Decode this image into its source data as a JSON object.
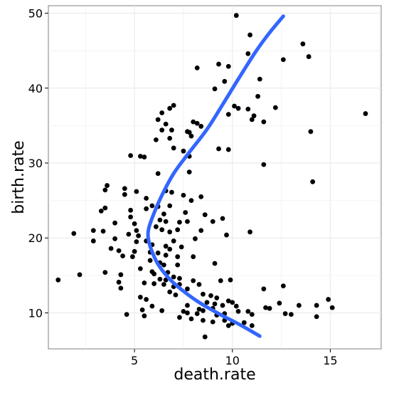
{
  "chart_data": {
    "type": "scatter",
    "title": "",
    "xlabel": "death.rate",
    "ylabel": "birth.rate",
    "xlim": [
      0.6,
      17.6
    ],
    "ylim": [
      5.2,
      51.0
    ],
    "x_ticks": [
      5,
      10,
      15
    ],
    "y_ticks": [
      10,
      20,
      30,
      40,
      50
    ],
    "x_tick_labels": [
      "5",
      "10",
      "15"
    ],
    "y_tick_labels": [
      "10",
      "20",
      "30",
      "40",
      "50"
    ],
    "grid": true,
    "background": "#ffffff",
    "grid_color": "#ebebeb",
    "point_color": "#000000",
    "smooth_color": "#3366ff",
    "points": [
      [
        10.2,
        49.7
      ],
      [
        10.9,
        47.1
      ],
      [
        13.6,
        45.9
      ],
      [
        10.8,
        44.6
      ],
      [
        13.9,
        44.2
      ],
      [
        9.3,
        43.2
      ],
      [
        9.8,
        42.9
      ],
      [
        12.6,
        43.8
      ],
      [
        8.2,
        42.7
      ],
      [
        11.4,
        41.2
      ],
      [
        9.6,
        40.9
      ],
      [
        9.1,
        39.9
      ],
      [
        11.3,
        38.9
      ],
      [
        12.2,
        37.4
      ],
      [
        10.1,
        37.6
      ],
      [
        10.3,
        37.3
      ],
      [
        10.8,
        37.2
      ],
      [
        11.1,
        36.3
      ],
      [
        9.8,
        36.5
      ],
      [
        11.6,
        35.5
      ],
      [
        11.0,
        35.8
      ],
      [
        16.8,
        36.6
      ],
      [
        6.4,
        36.7
      ],
      [
        6.8,
        37.3
      ],
      [
        7.0,
        37.7
      ],
      [
        6.2,
        35.8
      ],
      [
        6.6,
        35.2
      ],
      [
        6.4,
        34.4
      ],
      [
        6.9,
        34.4
      ],
      [
        7.7,
        34.2
      ],
      [
        7.8,
        34.1
      ],
      [
        7.9,
        33.6
      ],
      [
        8.0,
        35.5
      ],
      [
        8.2,
        35.3
      ],
      [
        8.4,
        34.9
      ],
      [
        14.0,
        34.2
      ],
      [
        6.1,
        33.1
      ],
      [
        6.8,
        33.3
      ],
      [
        7.0,
        32.0
      ],
      [
        7.5,
        31.6
      ],
      [
        7.8,
        30.9
      ],
      [
        9.3,
        31.9
      ],
      [
        9.8,
        31.8
      ],
      [
        4.8,
        31.0
      ],
      [
        5.3,
        30.9
      ],
      [
        5.5,
        30.8
      ],
      [
        11.6,
        29.8
      ],
      [
        7.8,
        28.8
      ],
      [
        6.2,
        28.6
      ],
      [
        3.6,
        27.0
      ],
      [
        3.5,
        26.4
      ],
      [
        4.5,
        26.6
      ],
      [
        5.1,
        26.2
      ],
      [
        6.6,
        26.3
      ],
      [
        6.9,
        26.1
      ],
      [
        6.8,
        24.3
      ],
      [
        8.4,
        25.5
      ],
      [
        14.1,
        27.5
      ],
      [
        4.5,
        25.8
      ],
      [
        5.6,
        25.3
      ],
      [
        7.5,
        25.7
      ],
      [
        7.9,
        25.0
      ],
      [
        5.9,
        24.3
      ],
      [
        6.2,
        24.2
      ],
      [
        3.3,
        23.6
      ],
      [
        3.5,
        24.0
      ],
      [
        4.8,
        23.7
      ],
      [
        5.6,
        23.9
      ],
      [
        4.8,
        22.8
      ],
      [
        7.6,
        23.4
      ],
      [
        6.5,
        23.2
      ],
      [
        8.6,
        23.1
      ],
      [
        6.3,
        22.4
      ],
      [
        6.6,
        22.2
      ],
      [
        7.3,
        22.1
      ],
      [
        7.7,
        22.2
      ],
      [
        9.0,
        22.2
      ],
      [
        9.5,
        22.6
      ],
      [
        4.0,
        22.0
      ],
      [
        5.0,
        21.9
      ],
      [
        2.9,
        21.0
      ],
      [
        3.4,
        20.9
      ],
      [
        1.9,
        20.6
      ],
      [
        4.7,
        20.5
      ],
      [
        5.2,
        20.3
      ],
      [
        5.1,
        21.0
      ],
      [
        6.1,
        21.5
      ],
      [
        6.4,
        21.1
      ],
      [
        7.2,
        21.1
      ],
      [
        8.4,
        21.0
      ],
      [
        9.7,
        20.4
      ],
      [
        10.9,
        20.8
      ],
      [
        6.8,
        20.8
      ],
      [
        2.9,
        19.6
      ],
      [
        4.0,
        19.9
      ],
      [
        5.1,
        19.5
      ],
      [
        5.6,
        19.6
      ],
      [
        7.0,
        19.6
      ],
      [
        8.1,
        19.9
      ],
      [
        5.9,
        19.1
      ],
      [
        6.6,
        18.9
      ],
      [
        7.4,
        18.8
      ],
      [
        6.8,
        18.5
      ],
      [
        3.8,
        18.6
      ],
      [
        4.2,
        18.3
      ],
      [
        5.0,
        18.2
      ],
      [
        5.8,
        18.1
      ],
      [
        6.2,
        18.0
      ],
      [
        6.6,
        17.7
      ],
      [
        7.2,
        17.5
      ],
      [
        8.0,
        17.5
      ],
      [
        4.4,
        17.6
      ],
      [
        4.9,
        17.5
      ],
      [
        5.8,
        17.0
      ],
      [
        9.1,
        16.6
      ],
      [
        6.3,
        16.7
      ],
      [
        6.5,
        16.4
      ],
      [
        5.3,
        15.9
      ],
      [
        7.2,
        16.4
      ],
      [
        5.9,
        15.5
      ],
      [
        3.5,
        15.4
      ],
      [
        4.3,
        15.1
      ],
      [
        6.0,
        15.2
      ],
      [
        6.7,
        15.4
      ],
      [
        2.2,
        15.1
      ],
      [
        7.0,
        14.8
      ],
      [
        7.3,
        14.6
      ],
      [
        1.1,
        14.4
      ],
      [
        6.3,
        14.5
      ],
      [
        6.6,
        14.4
      ],
      [
        8.0,
        14.3
      ],
      [
        9.4,
        14.3
      ],
      [
        9.9,
        14.4
      ],
      [
        4.2,
        14.1
      ],
      [
        5.5,
        14.0
      ],
      [
        6.0,
        13.9
      ],
      [
        6.5,
        13.8
      ],
      [
        7.0,
        13.5
      ],
      [
        7.3,
        13.8
      ],
      [
        8.3,
        13.8
      ],
      [
        7.7,
        13.2
      ],
      [
        12.6,
        13.6
      ],
      [
        11.6,
        13.2
      ],
      [
        4.3,
        13.3
      ],
      [
        6.8,
        12.8
      ],
      [
        7.1,
        12.4
      ],
      [
        8.5,
        12.5
      ],
      [
        8.9,
        12.3
      ],
      [
        5.3,
        12.1
      ],
      [
        5.6,
        11.8
      ],
      [
        9.2,
        12.0
      ],
      [
        9.8,
        11.6
      ],
      [
        10.0,
        11.4
      ],
      [
        8.7,
        11.4
      ],
      [
        9.1,
        11.2
      ],
      [
        9.5,
        11.0
      ],
      [
        10.2,
        10.9
      ],
      [
        14.9,
        11.8
      ],
      [
        5.9,
        10.9
      ],
      [
        7.7,
        11.0
      ],
      [
        12.4,
        11.3
      ],
      [
        14.3,
        11.0
      ],
      [
        13.4,
        11.0
      ],
      [
        15.1,
        10.7
      ],
      [
        11.7,
        10.7
      ],
      [
        8.3,
        10.5
      ],
      [
        8.5,
        10.3
      ],
      [
        9.0,
        10.6
      ],
      [
        10.3,
        10.2
      ],
      [
        10.8,
        10.2
      ],
      [
        11.9,
        10.6
      ],
      [
        5.4,
        10.4
      ],
      [
        6.4,
        10.3
      ],
      [
        7.5,
        10.2
      ],
      [
        7.7,
        10.0
      ],
      [
        4.6,
        9.8
      ],
      [
        5.5,
        9.6
      ],
      [
        8.2,
        9.9
      ],
      [
        9.2,
        9.7
      ],
      [
        9.6,
        9.9
      ],
      [
        11.0,
        9.8
      ],
      [
        12.7,
        9.9
      ],
      [
        13.0,
        9.8
      ],
      [
        14.3,
        9.5
      ],
      [
        7.3,
        9.4
      ],
      [
        7.9,
        9.2
      ],
      [
        8.5,
        9.0
      ],
      [
        9.0,
        8.8
      ],
      [
        9.6,
        9.0
      ],
      [
        10.0,
        8.6
      ],
      [
        10.6,
        8.7
      ],
      [
        9.8,
        8.3
      ],
      [
        11.0,
        8.3
      ],
      [
        8.6,
        6.8
      ]
    ],
    "smooth_line": [
      [
        11.4,
        6.9
      ],
      [
        10.4,
        8.4
      ],
      [
        9.3,
        9.9
      ],
      [
        8.3,
        11.4
      ],
      [
        7.5,
        12.9
      ],
      [
        6.8,
        14.5
      ],
      [
        6.2,
        16.5
      ],
      [
        5.85,
        18.5
      ],
      [
        5.7,
        20.0
      ],
      [
        5.72,
        21.2
      ],
      [
        5.95,
        23.0
      ],
      [
        6.4,
        25.7
      ],
      [
        7.0,
        28.6
      ],
      [
        7.7,
        31.1
      ],
      [
        8.7,
        34.5
      ],
      [
        9.5,
        37.8
      ],
      [
        10.3,
        41.2
      ],
      [
        11.2,
        44.9
      ],
      [
        11.9,
        47.4
      ],
      [
        12.6,
        49.6
      ]
    ]
  }
}
